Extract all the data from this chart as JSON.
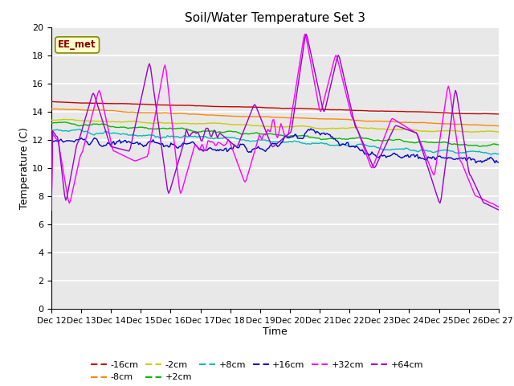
{
  "title": "Soil/Water Temperature Set 3",
  "xlabel": "Time",
  "ylabel": "Temperature (C)",
  "ylim": [
    0,
    20
  ],
  "yticks": [
    0,
    2,
    4,
    6,
    8,
    10,
    12,
    14,
    16,
    18,
    20
  ],
  "annotation": "EE_met",
  "bg_color": "#e8e8e8",
  "plot_bg": "#e8e8e8",
  "series": [
    {
      "label": "-16cm",
      "color": "#cc0000"
    },
    {
      "label": "-8cm",
      "color": "#ff8800"
    },
    {
      "label": "-2cm",
      "color": "#cccc00"
    },
    {
      "label": "+2cm",
      "color": "#00bb00"
    },
    {
      "label": "+8cm",
      "color": "#00bbbb"
    },
    {
      "label": "+16cm",
      "color": "#0000cc"
    },
    {
      "label": "+32cm",
      "color": "#ff00ff"
    },
    {
      "label": "+64cm",
      "color": "#9900cc"
    }
  ],
  "xtick_labels": [
    "Dec 12",
    "Dec 13",
    "Dec 14",
    "Dec 15",
    "Dec 16",
    "Dec 17",
    "Dec 18",
    "Dec 19",
    "Dec 20",
    "Dec 21",
    "Dec 22",
    "Dec 23",
    "Dec 24",
    "Dec 25",
    "Dec 26",
    "Dec 27"
  ],
  "legend_row1": [
    "-16cm",
    "-8cm",
    "-2cm",
    "+2cm",
    "+8cm",
    "+16cm"
  ],
  "legend_row2": [
    "+32cm",
    "+64cm"
  ]
}
